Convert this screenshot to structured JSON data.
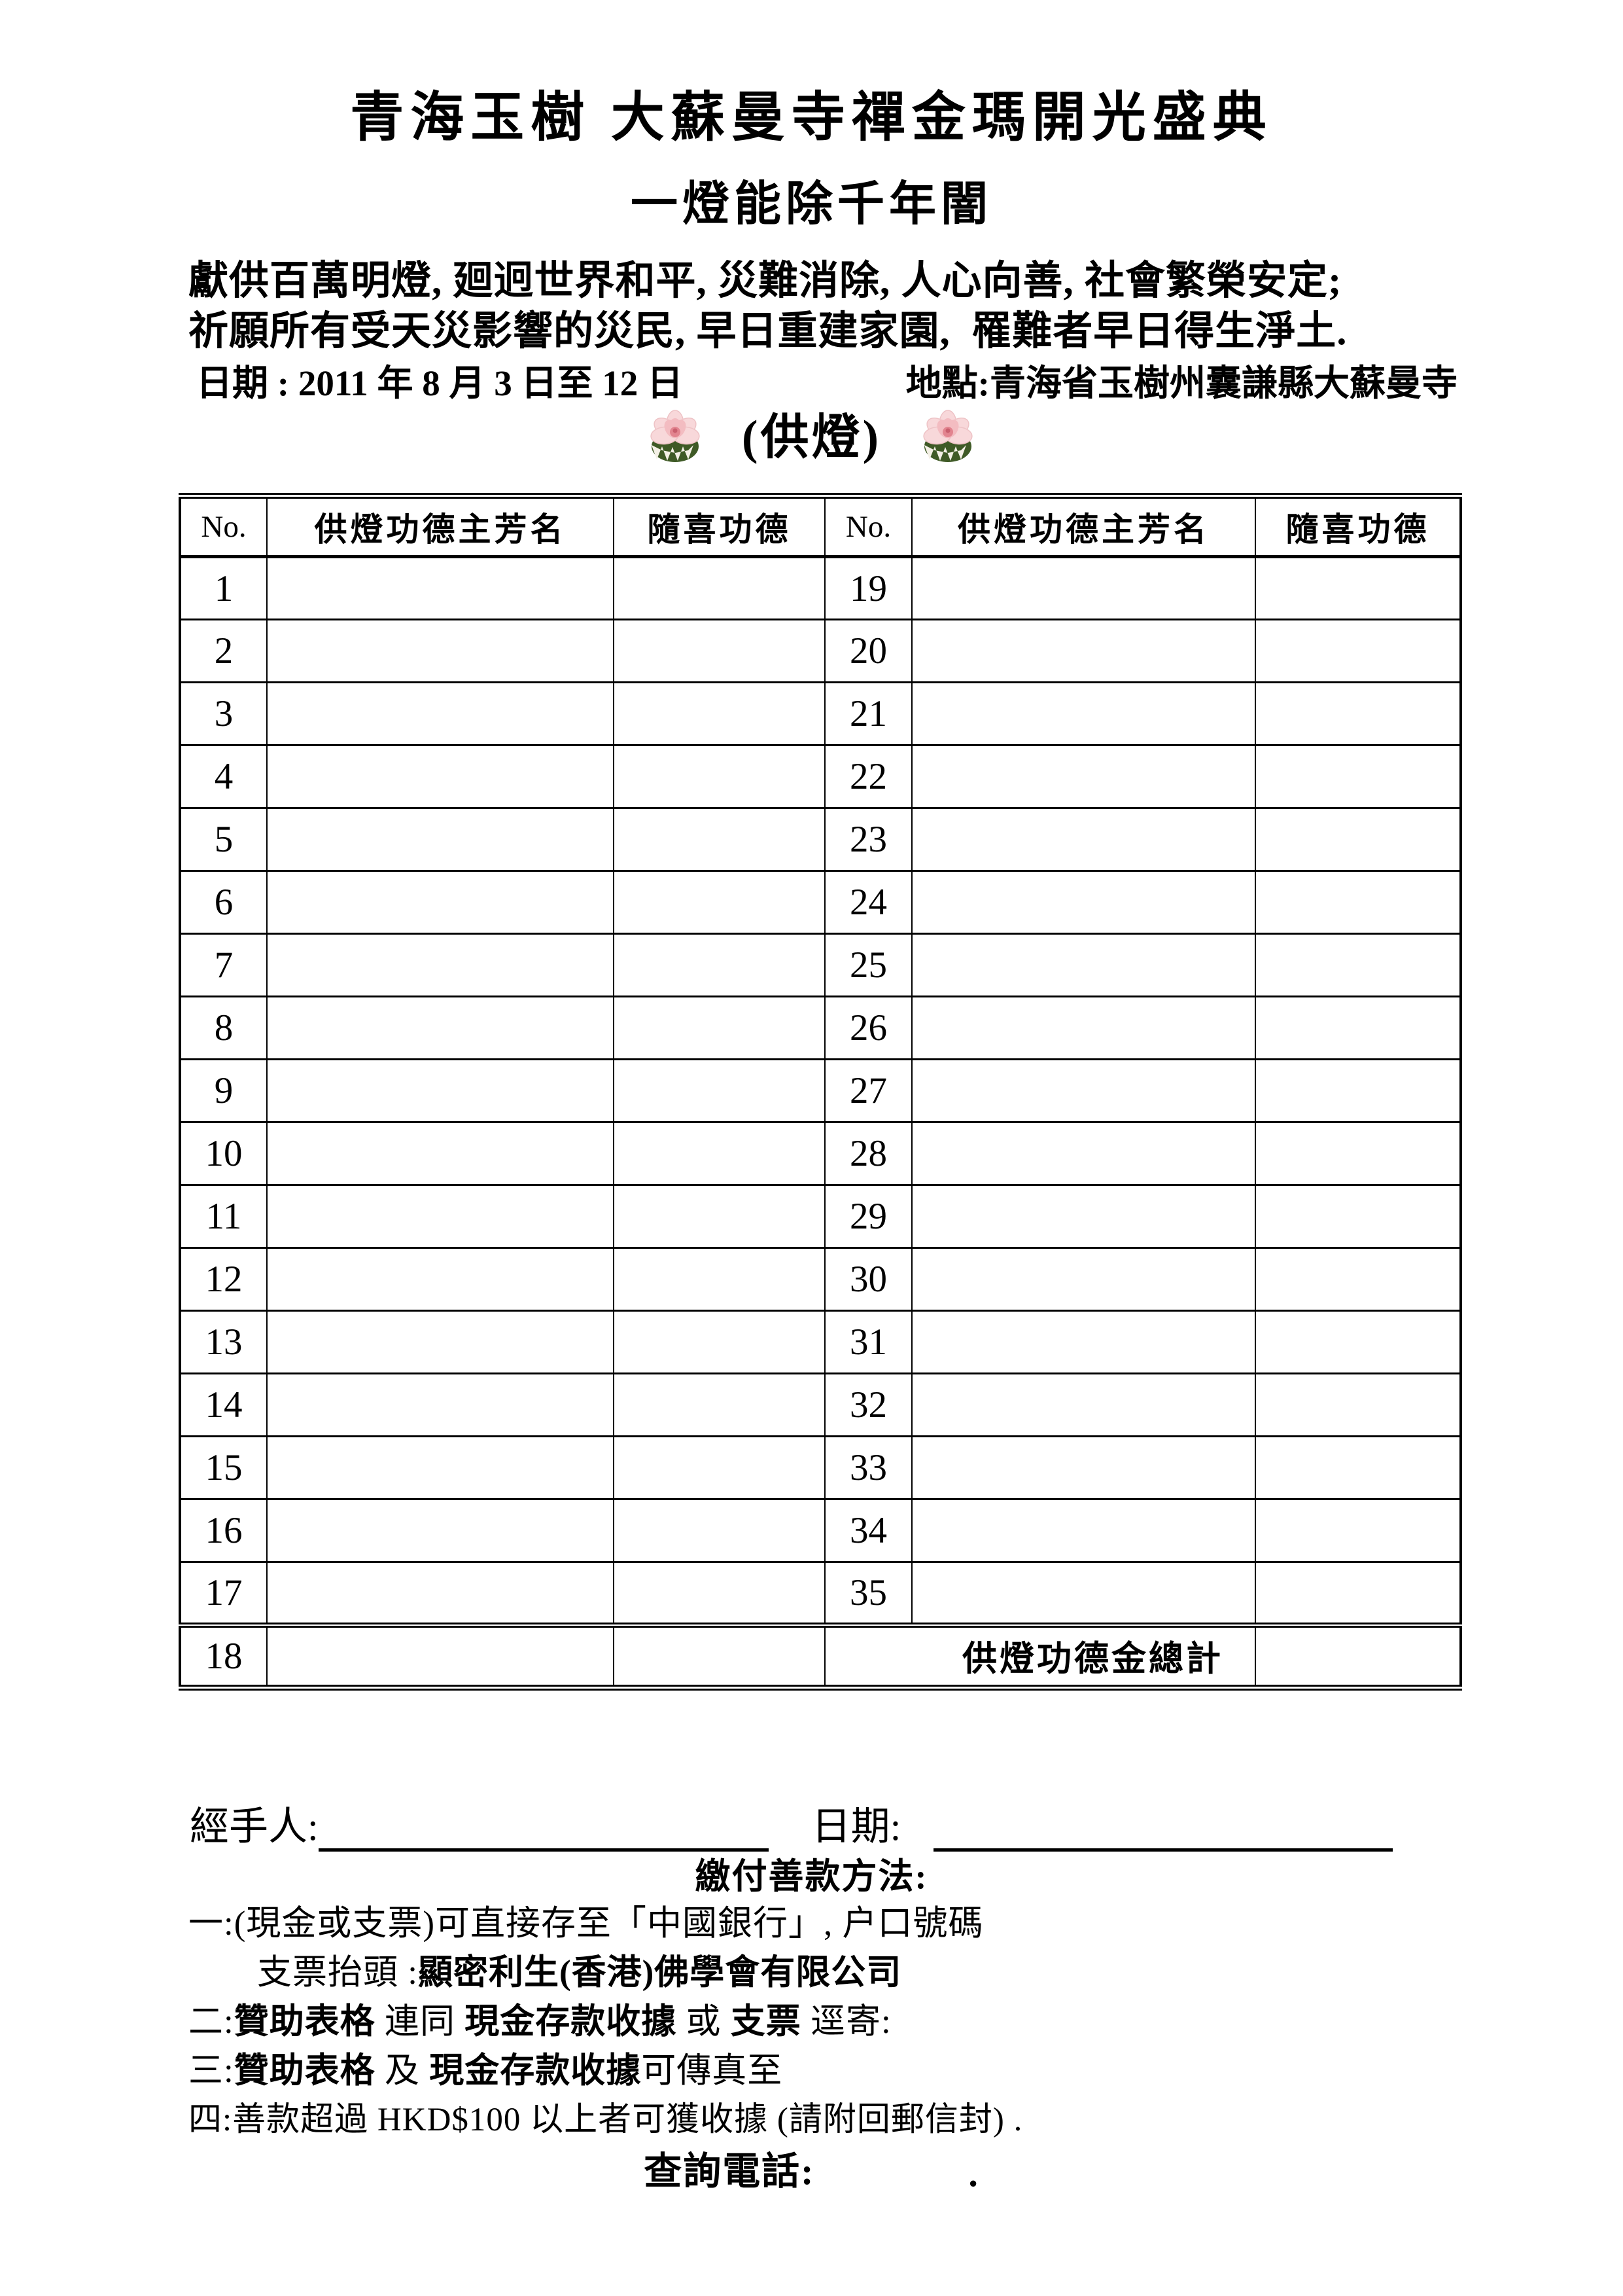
{
  "header": {
    "title": "青海玉樹 大蘇曼寺禪金瑪開光盛典",
    "subtitle": "一燈能除千年闇",
    "intro_line1": "獻供百萬明燈, 廻迥世界和平, 災難消除, 人心向善, 社會繁榮安定;",
    "intro_line2": "祈願所有受天災影響的災民, 早日重建家園,  罹難者早日得生淨土.",
    "date_line": "日期 : 2011 年 8 月 3 日至 12 日",
    "location_line": "地點:青海省玉樹州囊謙縣大蘇曼寺",
    "section_label": "(供燈)",
    "lotus_icon": "lotus-flower"
  },
  "table": {
    "headers": [
      "No.",
      "供燈功德主芳名",
      "隨喜功德",
      "No.",
      "供燈功德主芳名",
      "隨喜功德"
    ],
    "left_numbers": [
      1,
      2,
      3,
      4,
      5,
      6,
      7,
      8,
      9,
      10,
      11,
      12,
      13,
      14,
      15,
      16,
      17,
      18
    ],
    "right_numbers": [
      19,
      20,
      21,
      22,
      23,
      24,
      25,
      26,
      27,
      28,
      29,
      30,
      31,
      32,
      33,
      34,
      35
    ],
    "total_label": "供燈功德金總計"
  },
  "footer": {
    "handler_label": "經手人:",
    "date_label": "日期:",
    "payment_title": "繳付善款方法:",
    "method1": "一:(現金或支票)可直接存至「中國銀行」, 户口號碼",
    "method1b": {
      "label": "支票抬頭 :",
      "value": "顯密利生(香港)佛學會有限公司"
    },
    "method2": {
      "prefix": "二:",
      "bold1": "贊助表格",
      "mid1": " 連同 ",
      "bold2": "現金存款收據",
      "mid2": " 或 ",
      "bold3": "支票",
      "suffix": " 逕寄:"
    },
    "method3": {
      "prefix": "三:",
      "bold1": "贊助表格",
      "mid1": " 及 ",
      "bold2": "現金存款收據",
      "suffix": "可傳真至"
    },
    "method4": "四:善款超過 HKD$100 以上者可獲收據 (請附回郵信封) .",
    "phone_label": "查詢電話:",
    "phone_period": "."
  },
  "colors": {
    "ink": "#000000",
    "paper": "#ffffff",
    "lotus_pink": "#f8d8da",
    "lotus_deep": "#f3bcc1",
    "lotus_center": "#e2848f",
    "leaf_green": "#3f5a26"
  }
}
